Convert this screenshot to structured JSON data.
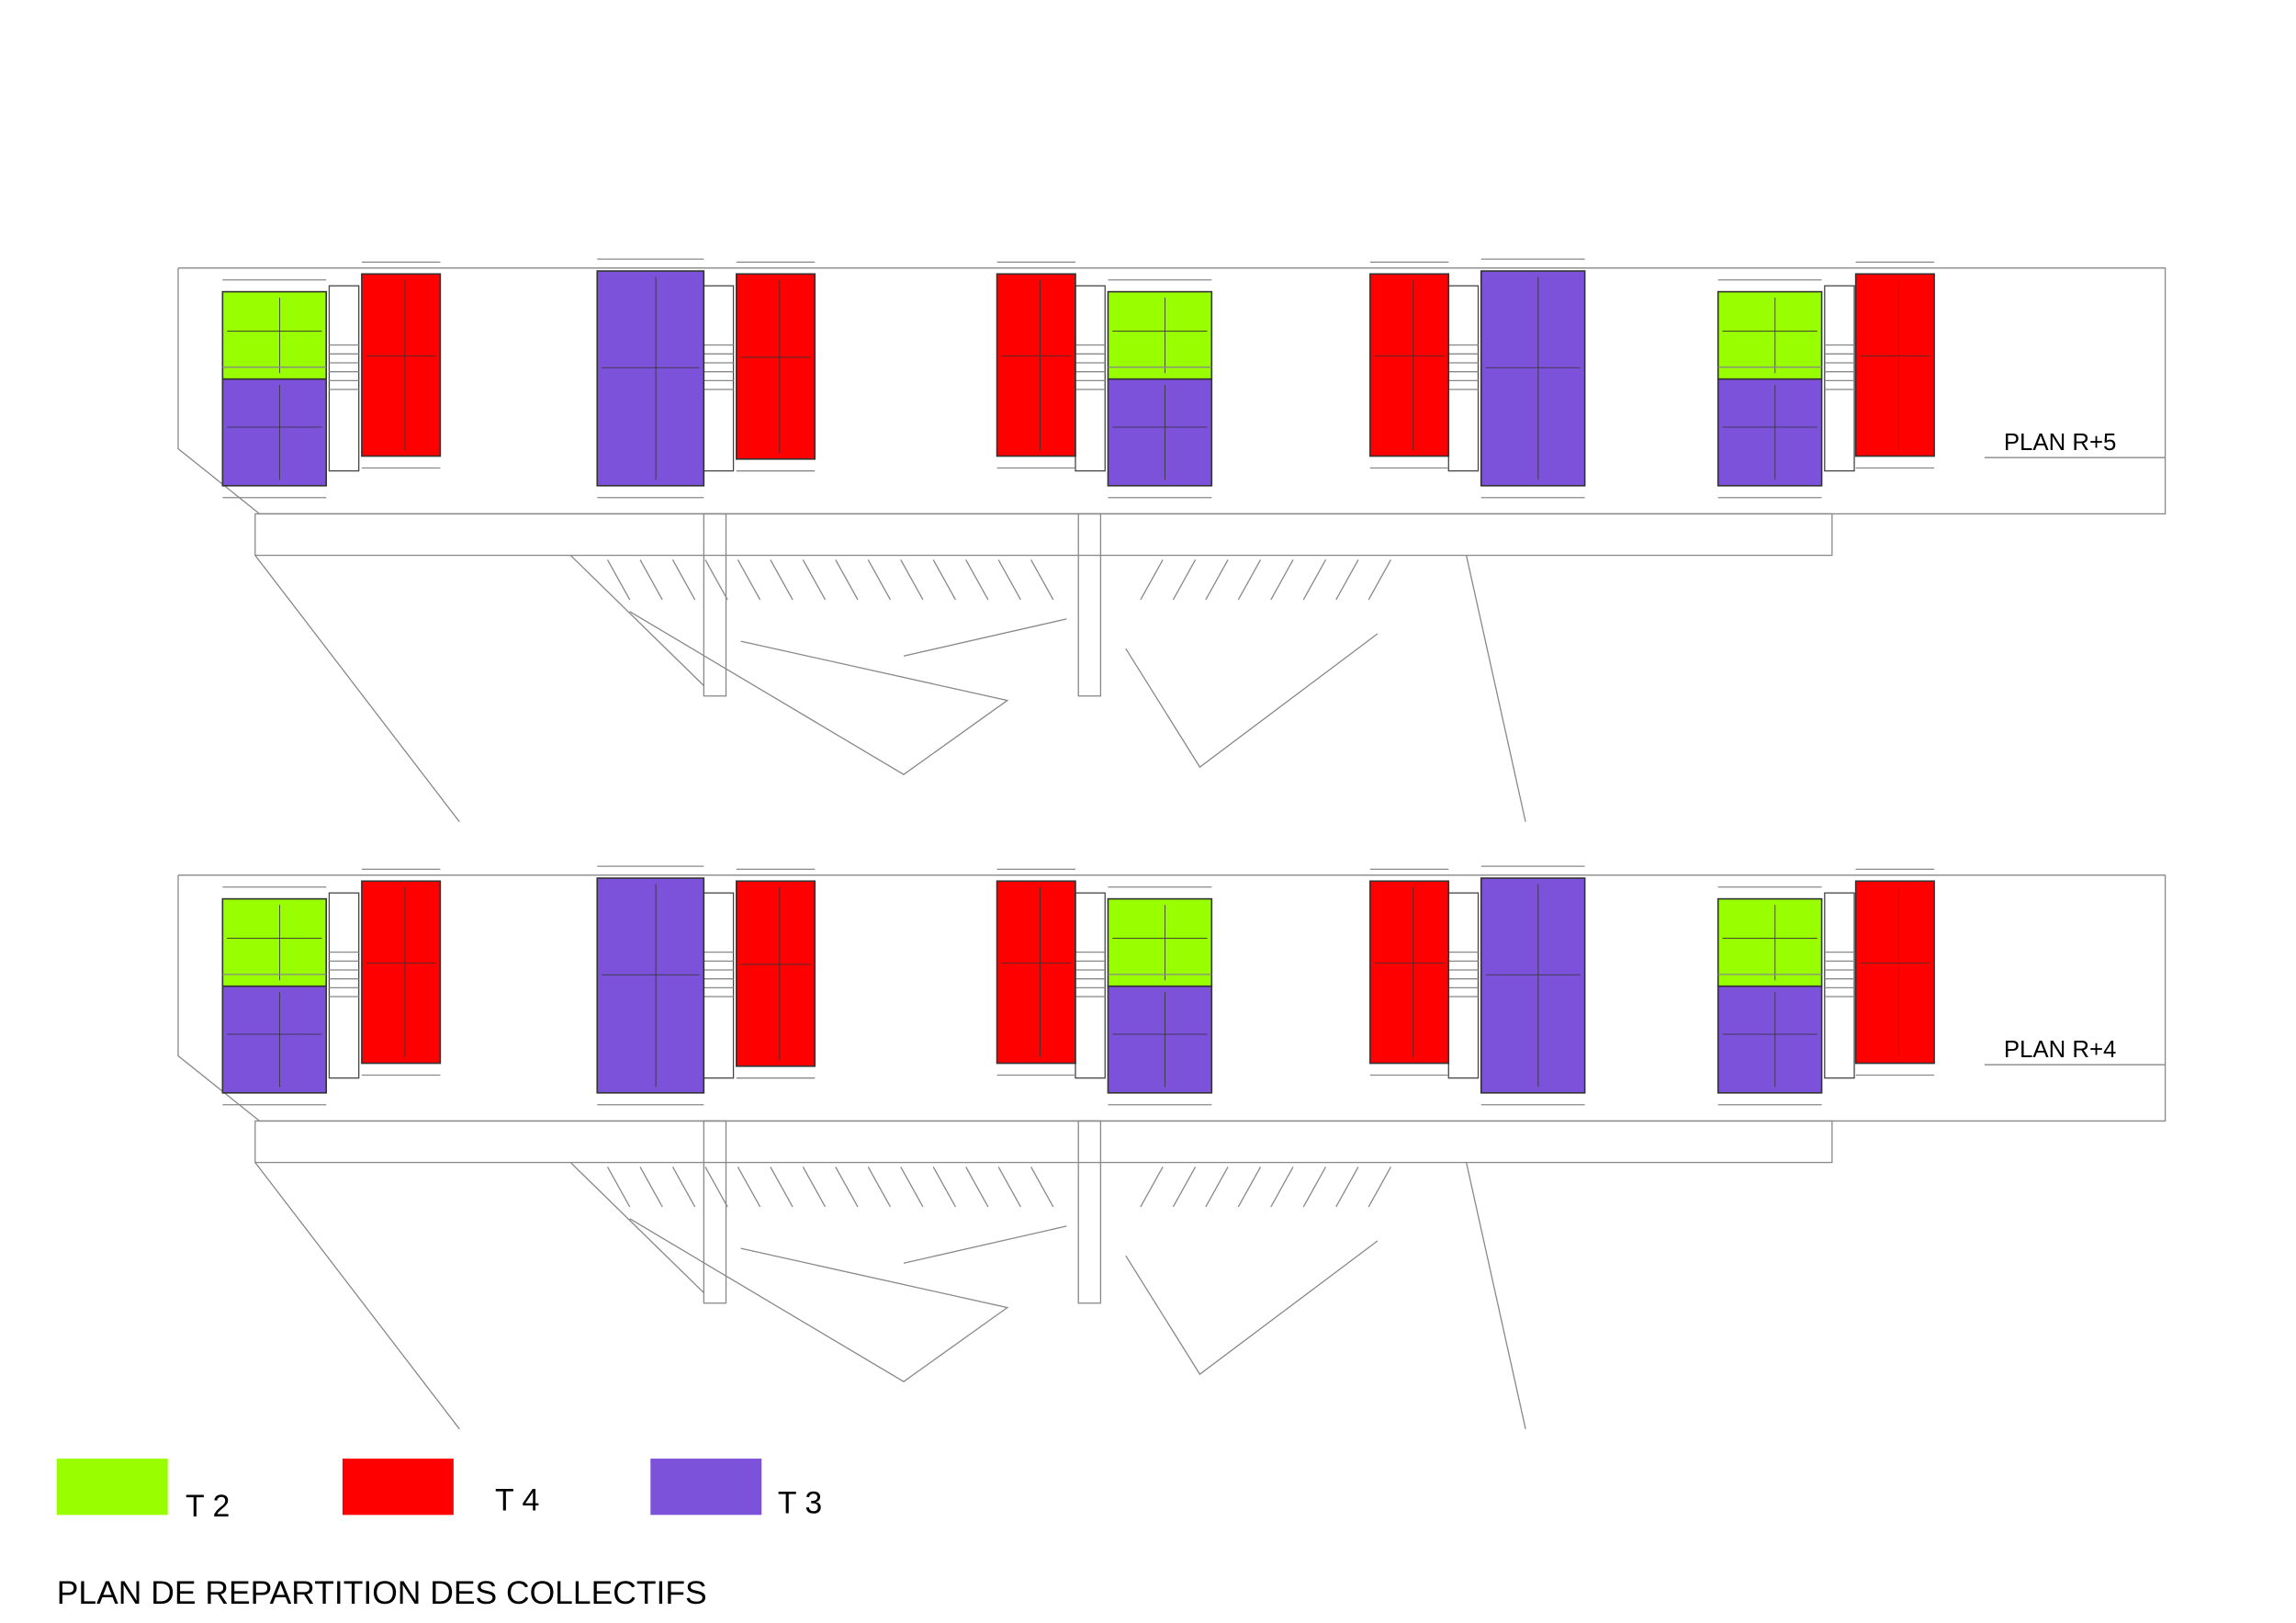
{
  "plans": [
    {
      "label": "PLAN R+5"
    },
    {
      "label": "PLAN R+4"
    }
  ],
  "legend": [
    {
      "label": "T 2",
      "color": "#99ff00"
    },
    {
      "label": "T 4",
      "color": "#ff0000"
    },
    {
      "label": "T 3",
      "color": "#7b52d9"
    }
  ],
  "title": "PLAN DE REPARTITION  DES COLLECTIFS"
}
